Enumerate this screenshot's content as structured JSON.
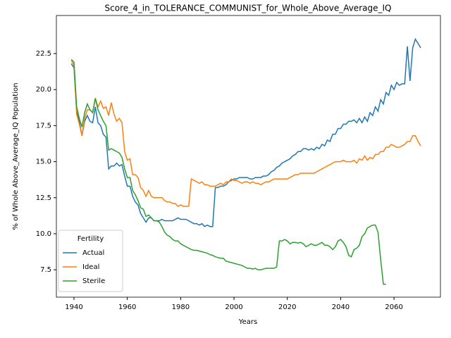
{
  "chart_data": {
    "type": "line",
    "title": "Score_4_in_TOLERANCE_COMMUNIST_for_Whole_Above_Average_IQ",
    "xlabel": "Years",
    "ylabel": "% of Whole Above_Average_IQ Population",
    "legend_title": "Fertility",
    "legend": "lower left",
    "x": [
      1939,
      1940,
      1941,
      1942,
      1943,
      1944,
      1945,
      1946,
      1947,
      1948,
      1949,
      1950,
      1951,
      1952,
      1953,
      1954,
      1955,
      1956,
      1957,
      1958,
      1959,
      1960,
      1961,
      1962,
      1963,
      1964,
      1965,
      1966,
      1967,
      1968,
      1969,
      1970,
      1971,
      1972,
      1973,
      1974,
      1975,
      1976,
      1977,
      1978,
      1979,
      1980,
      1981,
      1982,
      1983,
      1984,
      1985,
      1986,
      1987,
      1988,
      1989,
      1990,
      1991,
      1992,
      1993,
      1994,
      1995,
      1996,
      1997,
      1998,
      1999,
      2000,
      2001,
      2002,
      2003,
      2004,
      2005,
      2006,
      2007,
      2008,
      2009,
      2010,
      2011,
      2012,
      2013,
      2014,
      2015,
      2016,
      2017,
      2018,
      2019,
      2020,
      2021,
      2022,
      2023,
      2024,
      2025,
      2026,
      2027,
      2028,
      2029,
      2030,
      2031,
      2032,
      2033,
      2034,
      2035,
      2036,
      2037,
      2038,
      2039,
      2040,
      2041,
      2042,
      2043,
      2044,
      2045,
      2046,
      2047,
      2048,
      2049,
      2050,
      2051,
      2052,
      2053,
      2054,
      2055,
      2056,
      2057,
      2058,
      2059,
      2060,
      2061,
      2062,
      2063,
      2064,
      2065,
      2066,
      2067,
      2068,
      2069,
      2070
    ],
    "series": [
      {
        "name": "Actual",
        "color": "#1f77b4",
        "values": [
          21.8,
          21.5,
          18.5,
          17.8,
          16.8,
          17.8,
          18.2,
          17.8,
          17.7,
          18.8,
          17.7,
          17.5,
          16.9,
          16.7,
          14.5,
          14.7,
          14.7,
          14.9,
          14.7,
          14.8,
          14.0,
          13.3,
          13.3,
          12.6,
          12.2,
          12.0,
          11.4,
          11.1,
          10.8,
          11.1,
          11.1,
          10.9,
          10.9,
          10.9,
          11.0,
          10.9,
          10.9,
          10.9,
          10.9,
          11.0,
          11.1,
          11.0,
          11.0,
          11.0,
          10.9,
          10.8,
          10.7,
          10.7,
          10.6,
          10.7,
          10.5,
          10.6,
          10.5,
          10.5,
          13.2,
          13.2,
          13.3,
          13.3,
          13.4,
          13.6,
          13.7,
          13.8,
          13.8,
          13.9,
          13.9,
          13.9,
          13.9,
          13.8,
          13.8,
          13.9,
          13.9,
          13.9,
          14.0,
          14.0,
          14.1,
          14.3,
          14.4,
          14.6,
          14.7,
          14.9,
          15.0,
          15.1,
          15.2,
          15.4,
          15.5,
          15.7,
          15.7,
          15.9,
          15.9,
          15.8,
          15.9,
          15.8,
          16.0,
          15.9,
          16.2,
          16.1,
          16.5,
          16.4,
          16.9,
          16.9,
          17.3,
          17.3,
          17.6,
          17.6,
          17.8,
          17.8,
          17.9,
          17.7,
          18.0,
          17.7,
          18.1,
          17.8,
          18.4,
          18.2,
          18.8,
          18.5,
          19.3,
          19.0,
          19.8,
          19.6,
          20.3,
          20.0,
          20.5,
          20.3,
          20.4,
          20.4,
          23.0,
          20.6,
          22.9,
          23.5,
          23.2,
          22.9
        ]
      },
      {
        "name": "Ideal",
        "color": "#ff7f0e",
        "values": [
          22.0,
          21.7,
          18.3,
          17.6,
          16.8,
          18.0,
          18.6,
          18.6,
          18.4,
          19.4,
          18.8,
          19.2,
          18.7,
          18.8,
          18.2,
          19.1,
          18.3,
          17.8,
          18.0,
          17.7,
          15.7,
          15.1,
          15.2,
          14.1,
          14.1,
          13.9,
          13.2,
          13.0,
          12.6,
          13.0,
          12.6,
          12.5,
          12.5,
          12.5,
          12.5,
          12.3,
          12.2,
          12.2,
          12.1,
          12.1,
          11.9,
          12.0,
          11.9,
          11.9,
          11.9,
          13.8,
          13.7,
          13.6,
          13.5,
          13.6,
          13.4,
          13.4,
          13.3,
          13.3,
          13.3,
          13.4,
          13.5,
          13.4,
          13.6,
          13.6,
          13.8,
          13.7,
          13.7,
          13.6,
          13.5,
          13.6,
          13.6,
          13.5,
          13.6,
          13.5,
          13.5,
          13.4,
          13.5,
          13.6,
          13.6,
          13.7,
          13.8,
          13.8,
          13.8,
          13.8,
          13.8,
          13.8,
          13.9,
          14.0,
          14.1,
          14.1,
          14.2,
          14.2,
          14.2,
          14.2,
          14.2,
          14.2,
          14.3,
          14.4,
          14.5,
          14.6,
          14.7,
          14.8,
          14.9,
          15.0,
          15.0,
          15.0,
          15.1,
          15.0,
          15.0,
          15.0,
          15.1,
          14.9,
          15.2,
          15.1,
          15.4,
          15.1,
          15.3,
          15.2,
          15.5,
          15.5,
          15.7,
          15.7,
          16.0,
          16.0,
          16.2,
          16.1,
          16.0,
          16.0,
          16.1,
          16.2,
          16.4,
          16.4,
          16.8,
          16.8,
          16.4,
          16.1
        ]
      },
      {
        "name": "Sterile",
        "color": "#2ca02c",
        "values": [
          22.1,
          21.9,
          18.8,
          18.0,
          17.4,
          18.4,
          19.0,
          18.6,
          18.4,
          19.4,
          18.6,
          18.2,
          17.8,
          17.5,
          15.8,
          15.9,
          15.8,
          15.7,
          15.6,
          15.3,
          14.5,
          13.9,
          13.9,
          13.0,
          12.7,
          12.3,
          11.8,
          11.7,
          11.2,
          11.3,
          11.1,
          10.9,
          10.9,
          10.8,
          10.5,
          10.1,
          9.9,
          9.8,
          9.6,
          9.5,
          9.5,
          9.3,
          9.2,
          9.1,
          9.0,
          8.9,
          8.85,
          8.85,
          8.8,
          8.75,
          8.7,
          8.65,
          8.55,
          8.5,
          8.4,
          8.35,
          8.3,
          8.3,
          8.1,
          8.05,
          8.0,
          7.95,
          7.9,
          7.85,
          7.8,
          7.7,
          7.6,
          7.6,
          7.55,
          7.6,
          7.5,
          7.5,
          7.55,
          7.6,
          7.6,
          7.6,
          7.6,
          7.7,
          9.5,
          9.5,
          9.6,
          9.5,
          9.3,
          9.4,
          9.4,
          9.35,
          9.4,
          9.3,
          9.1,
          9.2,
          9.3,
          9.2,
          9.2,
          9.3,
          9.4,
          9.2,
          9.2,
          9.1,
          8.9,
          9.1,
          9.5,
          9.6,
          9.4,
          9.1,
          8.5,
          8.4,
          8.9,
          9.0,
          9.2,
          9.8,
          10.0,
          10.4,
          10.5,
          10.6,
          10.6,
          10.1,
          8.2,
          6.5,
          6.5,
          null,
          null,
          null,
          null,
          null,
          null,
          null,
          null,
          null,
          null,
          null,
          null,
          null
        ]
      }
    ],
    "xlim": [
      1933.4,
      2077.4
    ],
    "xticks": [
      1940,
      1960,
      1980,
      2000,
      2020,
      2040,
      2060
    ],
    "ylim": [
      5.6,
      25.14
    ],
    "yticks": [
      7.5,
      {
        "value": 10,
        "label": "10.0"
      },
      12.5,
      {
        "value": 15,
        "label": "15.0"
      },
      17.5,
      {
        "value": 20,
        "label": "20.0"
      },
      22.5
    ],
    "grid": false
  }
}
